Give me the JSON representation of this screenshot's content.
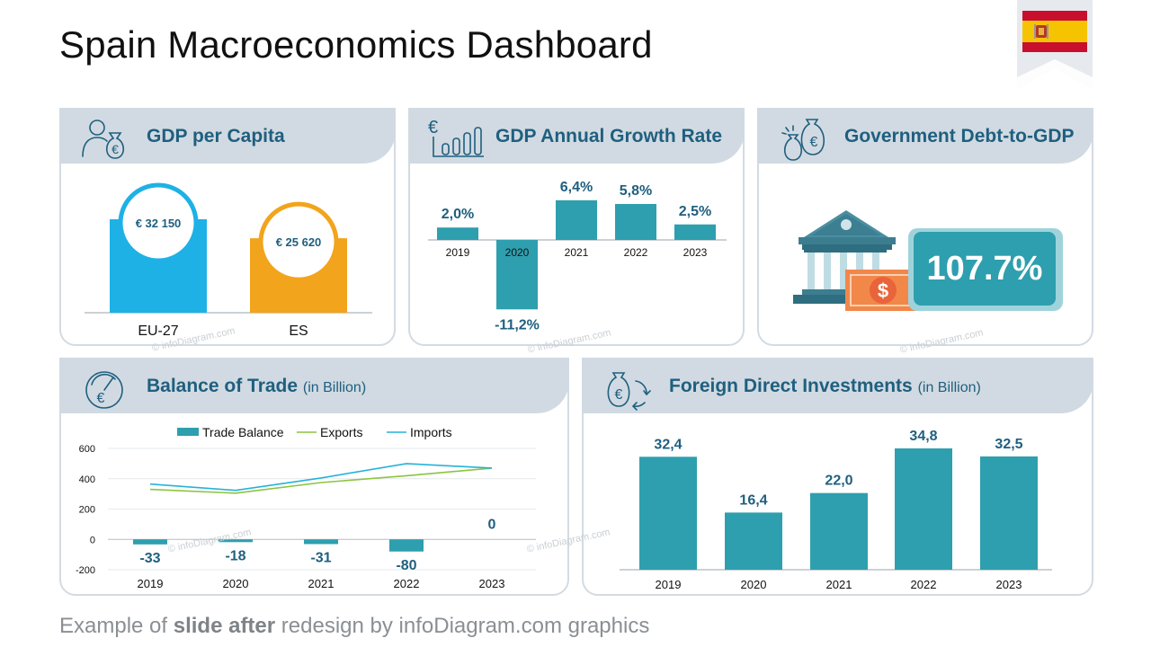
{
  "title": "Spain Macroeconomics Dashboard",
  "footer": {
    "prefix": "Example of ",
    "bold": "slide after",
    "suffix": " redesign by infoDiagram.com graphics"
  },
  "watermark": "© infoDiagram.com",
  "colors": {
    "teal": "#2e9fae",
    "blue": "#1eb1e6",
    "orange": "#f2a41c",
    "title": "#1f5f7f",
    "panel_head": "#d1dae2"
  },
  "panels": {
    "gdp_per_capita": {
      "title": "GDP per Capita",
      "icon": "person-money-bag-icon"
    },
    "gdp_growth": {
      "title": "GDP Annual Growth Rate",
      "icon": "euro-bar-chart-icon"
    },
    "gov_debt": {
      "title": "Government Debt-to-GDP",
      "icon": "money-bags-icon",
      "value_label": "107.7%"
    },
    "trade": {
      "title": "Balance of Trade",
      "subtitle": "(in Billion)",
      "icon": "euro-gauge-icon"
    },
    "fdi": {
      "title": "Foreign Direct Investments",
      "subtitle": "(in Billion)",
      "icon": "money-bag-exchange-icon"
    }
  },
  "chart_data": [
    {
      "id": "gdp_per_capita",
      "type": "bar",
      "categories": [
        "EU-27",
        "ES"
      ],
      "values": [
        32150,
        25620
      ],
      "labels": [
        "€ 32 150",
        "€ 25 620"
      ],
      "colors": [
        "#1eb1e6",
        "#f2a41c"
      ]
    },
    {
      "id": "gdp_growth",
      "type": "bar",
      "categories": [
        "2019",
        "2020",
        "2021",
        "2022",
        "2023"
      ],
      "values": [
        2.0,
        -11.2,
        6.4,
        5.8,
        2.5
      ],
      "labels": [
        "2,0%",
        "-11,2%",
        "6,4%",
        "5,8%",
        "2,5%"
      ]
    },
    {
      "id": "gov_debt",
      "type": "table",
      "values": [
        107.7
      ],
      "labels": [
        "107.7%"
      ]
    },
    {
      "id": "trade",
      "type": "bar",
      "categories": [
        "2019",
        "2020",
        "2021",
        "2022",
        "2023"
      ],
      "series": [
        {
          "name": "Trade Balance",
          "type": "bar",
          "values": [
            -33,
            -18,
            -31,
            -80,
            0
          ],
          "labels": [
            "-33",
            "-18",
            "-31",
            "-80",
            "0"
          ],
          "color": "#2e9fae"
        },
        {
          "name": "Exports",
          "type": "line",
          "values": [
            330,
            305,
            375,
            420,
            470
          ],
          "color": "#8cc43f"
        },
        {
          "name": "Imports",
          "type": "line",
          "values": [
            365,
            323,
            405,
            500,
            470
          ],
          "color": "#27b2d8"
        }
      ],
      "yticks": [
        "600",
        "400",
        "200",
        "0",
        "-200"
      ],
      "ylim": [
        -200,
        600
      ],
      "legend": "top"
    },
    {
      "id": "fdi",
      "type": "bar",
      "categories": [
        "2019",
        "2020",
        "2021",
        "2022",
        "2023"
      ],
      "values": [
        32.4,
        16.4,
        22.0,
        34.8,
        32.5
      ],
      "labels": [
        "32,4",
        "16,4",
        "22,0",
        "34,8",
        "32,5"
      ]
    }
  ]
}
